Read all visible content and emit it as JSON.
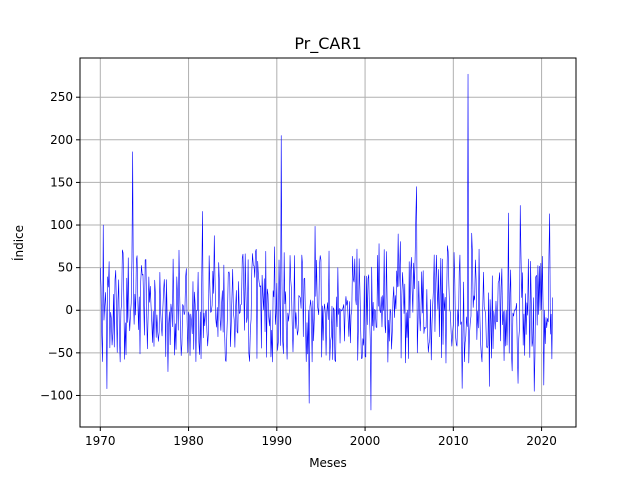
{
  "chart_data": {
    "type": "line",
    "title": "Pr_CAR1",
    "xlabel": "Meses",
    "ylabel": "Índice",
    "xlim": [
      1967.7,
      2023.9
    ],
    "ylim": [
      -137,
      296
    ],
    "x_ticks": [
      1970,
      1980,
      1990,
      2000,
      2010,
      2020
    ],
    "x_tick_labels": [
      "1970",
      "1980",
      "1990",
      "2000",
      "2010",
      "2020"
    ],
    "y_ticks": [
      -100,
      -50,
      0,
      50,
      100,
      150,
      200,
      250
    ],
    "y_tick_labels": [
      "−100",
      "−50",
      "0",
      "50",
      "100",
      "150",
      "200",
      "250"
    ],
    "grid": true,
    "legend": "none",
    "series": [
      {
        "color": "#0000ff",
        "x_start": "1970-01",
        "x_end": "2021-04",
        "frequency": "monthly",
        "key_points": [
          {
            "x": "1970-01",
            "y": 50
          },
          {
            "x": "1970-05",
            "y": 100
          },
          {
            "x": "1970-10",
            "y": -92
          },
          {
            "x": "1973-09",
            "y": 186
          },
          {
            "x": "1977-09",
            "y": -72
          },
          {
            "x": "1981-08",
            "y": 116
          },
          {
            "x": "1990-07",
            "y": 205
          },
          {
            "x": "1993-09",
            "y": -109
          },
          {
            "x": "2000-09",
            "y": -117
          },
          {
            "x": "2005-11",
            "y": 145
          },
          {
            "x": "2011-09",
            "y": 277
          },
          {
            "x": "2017-08",
            "y": 123
          },
          {
            "x": "2019-03",
            "y": -95
          },
          {
            "x": "2021-04",
            "y": 15
          }
        ]
      }
    ]
  }
}
